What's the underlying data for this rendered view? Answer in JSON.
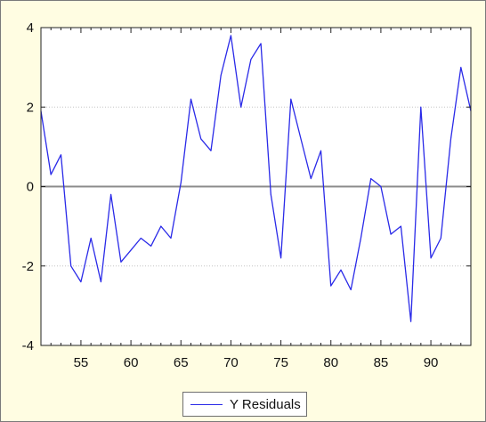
{
  "chart_data": {
    "type": "line",
    "title": "",
    "xlabel": "",
    "ylabel": "",
    "xlim": [
      51,
      94
    ],
    "ylim": [
      -4,
      4
    ],
    "x_ticks": [
      "55",
      "60",
      "65",
      "70",
      "75",
      "80",
      "85",
      "90"
    ],
    "x_tick_values": [
      55,
      60,
      65,
      70,
      75,
      80,
      85,
      90
    ],
    "y_ticks": [
      "-4",
      "-2",
      "0",
      "2",
      "4"
    ],
    "y_tick_values": [
      -4,
      -2,
      0,
      2,
      4
    ],
    "grid": "horizontal dotted",
    "zero_line": true,
    "legend_position": "bottom-center",
    "series": [
      {
        "name": "Y Residuals",
        "color": "#2a2ae8",
        "x": [
          51,
          52,
          53,
          54,
          55,
          56,
          57,
          58,
          59,
          60,
          61,
          62,
          63,
          64,
          65,
          66,
          67,
          68,
          69,
          70,
          71,
          72,
          73,
          74,
          75,
          76,
          77,
          78,
          79,
          80,
          81,
          82,
          83,
          84,
          85,
          86,
          87,
          88,
          89,
          90,
          91,
          92,
          93,
          94
        ],
        "y": [
          1.9,
          0.3,
          0.8,
          -2.0,
          -2.4,
          -1.3,
          -2.4,
          -0.2,
          -1.9,
          -1.6,
          -1.3,
          -1.5,
          -1.0,
          -1.3,
          0.1,
          2.2,
          1.2,
          0.9,
          2.8,
          3.8,
          2.0,
          3.2,
          3.6,
          -0.2,
          -1.8,
          2.2,
          1.2,
          0.2,
          0.9,
          -2.5,
          -2.1,
          -2.6,
          -1.3,
          0.2,
          0.0,
          -1.2,
          -1.0,
          -3.4,
          2.0,
          -1.8,
          -1.3,
          1.2,
          3.0,
          1.9
        ]
      }
    ]
  }
}
